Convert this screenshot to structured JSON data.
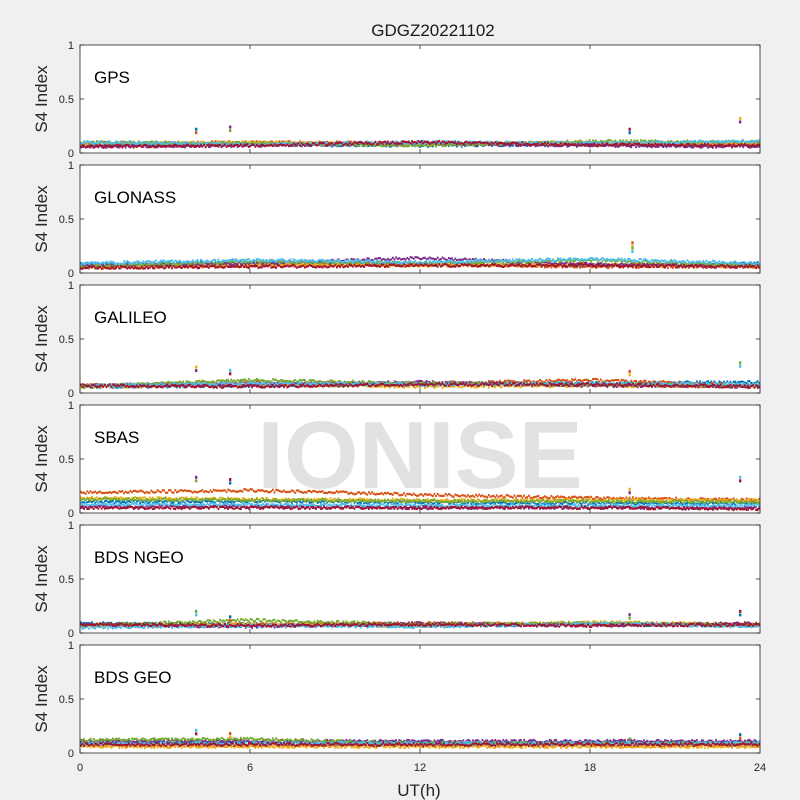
{
  "figure": {
    "title": "GDGZ20221102",
    "watermark": "IONISE",
    "background": "#f0f0f0",
    "axes_background": "#ffffff"
  },
  "chart_data": {
    "type": "scatter",
    "title": "GDGZ20221102",
    "xlabel": "UT(h)",
    "ylabel": "S4 Index",
    "xlim": [
      0,
      24
    ],
    "ylim": [
      0,
      1
    ],
    "xticks": [
      0,
      6,
      12,
      18,
      24
    ],
    "yticks": [
      0,
      0.5,
      1
    ],
    "ytick_labels": [
      "0",
      "0.5",
      "1"
    ],
    "colors": [
      "#0072bd",
      "#d95319",
      "#edb120",
      "#7e2f8e",
      "#77ac30",
      "#4dbeee",
      "#a2142f"
    ],
    "panels": [
      {
        "name": "GPS",
        "tracks": [
          {
            "x": [
              0,
              6,
              12,
              18,
              24
            ],
            "y": [
              0.07,
              0.08,
              0.07,
              0.08,
              0.07
            ]
          },
          {
            "x": [
              0,
              6,
              12,
              18,
              24
            ],
            "y": [
              0.09,
              0.1,
              0.09,
              0.08,
              0.09
            ]
          },
          {
            "x": [
              0,
              6,
              12,
              18,
              24
            ],
            "y": [
              0.08,
              0.1,
              0.08,
              0.1,
              0.08
            ]
          },
          {
            "x": [
              0,
              6,
              12,
              18,
              24
            ],
            "y": [
              0.06,
              0.07,
              0.09,
              0.07,
              0.06
            ]
          },
          {
            "x": [
              0,
              6,
              12,
              18,
              24
            ],
            "y": [
              0.1,
              0.09,
              0.07,
              0.11,
              0.1
            ]
          },
          {
            "x": [
              0,
              6,
              12,
              18,
              24
            ],
            "y": [
              0.1,
              0.08,
              0.1,
              0.09,
              0.11
            ]
          },
          {
            "x": [
              0,
              6,
              12,
              18,
              24
            ],
            "y": [
              0.06,
              0.07,
              0.1,
              0.08,
              0.07
            ]
          }
        ],
        "spikes": [
          {
            "x": 4.1,
            "y": 0.22
          },
          {
            "x": 5.3,
            "y": 0.24
          },
          {
            "x": 19.4,
            "y": 0.22
          },
          {
            "x": 23.3,
            "y": 0.32
          }
        ]
      },
      {
        "name": "GLONASS",
        "tracks": [
          {
            "x": [
              0,
              6,
              12,
              18,
              24
            ],
            "y": [
              0.08,
              0.1,
              0.08,
              0.07,
              0.09
            ]
          },
          {
            "x": [
              0,
              6,
              12,
              18,
              24
            ],
            "y": [
              0.05,
              0.07,
              0.08,
              0.06,
              0.06
            ]
          },
          {
            "x": [
              0,
              6,
              12,
              18,
              24
            ],
            "y": [
              0.06,
              0.08,
              0.07,
              0.08,
              0.06
            ]
          },
          {
            "x": [
              0,
              6,
              12,
              18,
              24
            ],
            "y": [
              0.07,
              0.09,
              0.14,
              0.08,
              0.07
            ]
          },
          {
            "x": [
              0,
              6,
              12,
              18,
              24
            ],
            "y": [
              0.06,
              0.11,
              0.09,
              0.12,
              0.07
            ]
          },
          {
            "x": [
              0,
              6,
              12,
              18,
              24
            ],
            "y": [
              0.09,
              0.12,
              0.1,
              0.13,
              0.09
            ]
          },
          {
            "x": [
              0,
              6,
              12,
              18,
              24
            ],
            "y": [
              0.05,
              0.06,
              0.07,
              0.07,
              0.06
            ]
          }
        ],
        "spikes": [
          {
            "x": 19.5,
            "y": 0.28
          },
          {
            "x": 19.5,
            "y": 0.23
          }
        ]
      },
      {
        "name": "GALILEO",
        "tracks": [
          {
            "x": [
              0,
              6,
              12,
              18,
              24
            ],
            "y": [
              0.06,
              0.07,
              0.08,
              0.09,
              0.1
            ]
          },
          {
            "x": [
              0,
              6,
              12,
              18,
              24
            ],
            "y": [
              0.07,
              0.1,
              0.09,
              0.12,
              0.07
            ]
          },
          {
            "x": [
              0,
              6,
              12,
              18,
              24
            ],
            "y": [
              0.06,
              0.08,
              0.06,
              0.07,
              0.06
            ]
          },
          {
            "x": [
              0,
              6,
              12,
              18,
              24
            ],
            "y": [
              0.07,
              0.08,
              0.1,
              0.07,
              0.06
            ]
          },
          {
            "x": [
              0,
              6,
              12,
              18,
              24
            ],
            "y": [
              0.06,
              0.12,
              0.09,
              0.08,
              0.07
            ]
          },
          {
            "x": [
              0,
              6,
              12,
              18,
              24
            ],
            "y": [
              0.07,
              0.09,
              0.08,
              0.09,
              0.08
            ]
          },
          {
            "x": [
              0,
              6,
              12,
              18,
              24
            ],
            "y": [
              0.07,
              0.06,
              0.08,
              0.08,
              0.06
            ]
          }
        ],
        "spikes": [
          {
            "x": 4.1,
            "y": 0.24
          },
          {
            "x": 5.3,
            "y": 0.21
          },
          {
            "x": 19.4,
            "y": 0.2
          },
          {
            "x": 23.3,
            "y": 0.28
          }
        ]
      },
      {
        "name": "SBAS",
        "tracks": [
          {
            "x": [
              0,
              6,
              12,
              18,
              24
            ],
            "y": [
              0.1,
              0.11,
              0.1,
              0.09,
              0.09
            ]
          },
          {
            "x": [
              0,
              6,
              12,
              18,
              24
            ],
            "y": [
              0.19,
              0.21,
              0.17,
              0.14,
              0.12
            ]
          },
          {
            "x": [
              0,
              6,
              12,
              18,
              24
            ],
            "y": [
              0.14,
              0.13,
              0.12,
              0.12,
              0.12
            ]
          },
          {
            "x": [
              0,
              6,
              12,
              18,
              24
            ],
            "y": [
              0.06,
              0.06,
              0.05,
              0.05,
              0.05
            ]
          },
          {
            "x": [
              0,
              6,
              12,
              18,
              24
            ],
            "y": [
              0.13,
              0.12,
              0.11,
              0.11,
              0.1
            ]
          },
          {
            "x": [
              0,
              6,
              12,
              18,
              24
            ],
            "y": [
              0.08,
              0.08,
              0.07,
              0.07,
              0.07
            ]
          },
          {
            "x": [
              0,
              6,
              12,
              18,
              24
            ],
            "y": [
              0.05,
              0.05,
              0.05,
              0.05,
              0.04
            ]
          }
        ],
        "spikes": [
          {
            "x": 4.1,
            "y": 0.33
          },
          {
            "x": 5.3,
            "y": 0.31
          },
          {
            "x": 19.4,
            "y": 0.22
          },
          {
            "x": 23.3,
            "y": 0.33
          }
        ]
      },
      {
        "name": "BDS NGEO",
        "tracks": [
          {
            "x": [
              0,
              6,
              12,
              18,
              24
            ],
            "y": [
              0.09,
              0.08,
              0.07,
              0.08,
              0.07
            ]
          },
          {
            "x": [
              0,
              6,
              12,
              18,
              24
            ],
            "y": [
              0.07,
              0.08,
              0.09,
              0.08,
              0.07
            ]
          },
          {
            "x": [
              0,
              6,
              12,
              18,
              24
            ],
            "y": [
              0.06,
              0.08,
              0.07,
              0.1,
              0.08
            ]
          },
          {
            "x": [
              0,
              6,
              12,
              18,
              24
            ],
            "y": [
              0.08,
              0.06,
              0.09,
              0.07,
              0.09
            ]
          },
          {
            "x": [
              0,
              6,
              12,
              18,
              24
            ],
            "y": [
              0.07,
              0.12,
              0.08,
              0.09,
              0.07
            ]
          },
          {
            "x": [
              0,
              6,
              12,
              18,
              24
            ],
            "y": [
              0.05,
              0.07,
              0.06,
              0.09,
              0.06
            ]
          },
          {
            "x": [
              0,
              6,
              12,
              18,
              24
            ],
            "y": [
              0.08,
              0.07,
              0.08,
              0.07,
              0.08
            ]
          }
        ],
        "spikes": [
          {
            "x": 4.1,
            "y": 0.2
          },
          {
            "x": 5.3,
            "y": 0.15
          },
          {
            "x": 19.4,
            "y": 0.17
          },
          {
            "x": 23.3,
            "y": 0.2
          }
        ]
      },
      {
        "name": "BDS GEO",
        "tracks": [
          {
            "x": [
              0,
              6,
              12,
              18,
              24
            ],
            "y": [
              0.1,
              0.1,
              0.1,
              0.1,
              0.1
            ]
          },
          {
            "x": [
              0,
              6,
              12,
              18,
              24
            ],
            "y": [
              0.07,
              0.07,
              0.07,
              0.07,
              0.07
            ]
          },
          {
            "x": [
              0,
              6,
              12,
              18,
              24
            ],
            "y": [
              0.06,
              0.06,
              0.06,
              0.06,
              0.06
            ]
          },
          {
            "x": [
              0,
              6,
              12,
              18,
              24
            ],
            "y": [
              0.11,
              0.11,
              0.11,
              0.11,
              0.11
            ]
          },
          {
            "x": [
              0,
              6,
              12,
              18,
              24
            ],
            "y": [
              0.12,
              0.13,
              0.09,
              0.09,
              0.09
            ]
          },
          {
            "x": [
              0,
              6,
              12,
              18,
              24
            ],
            "y": [
              0.09,
              0.09,
              0.09,
              0.09,
              0.09
            ]
          },
          {
            "x": [
              0,
              6,
              12,
              18,
              24
            ],
            "y": [
              0.08,
              0.08,
              0.08,
              0.08,
              0.08
            ]
          }
        ],
        "spikes": [
          {
            "x": 4.1,
            "y": 0.21
          },
          {
            "x": 5.3,
            "y": 0.18
          },
          {
            "x": 19.4,
            "y": 0.13
          },
          {
            "x": 23.3,
            "y": 0.17
          }
        ]
      }
    ]
  }
}
